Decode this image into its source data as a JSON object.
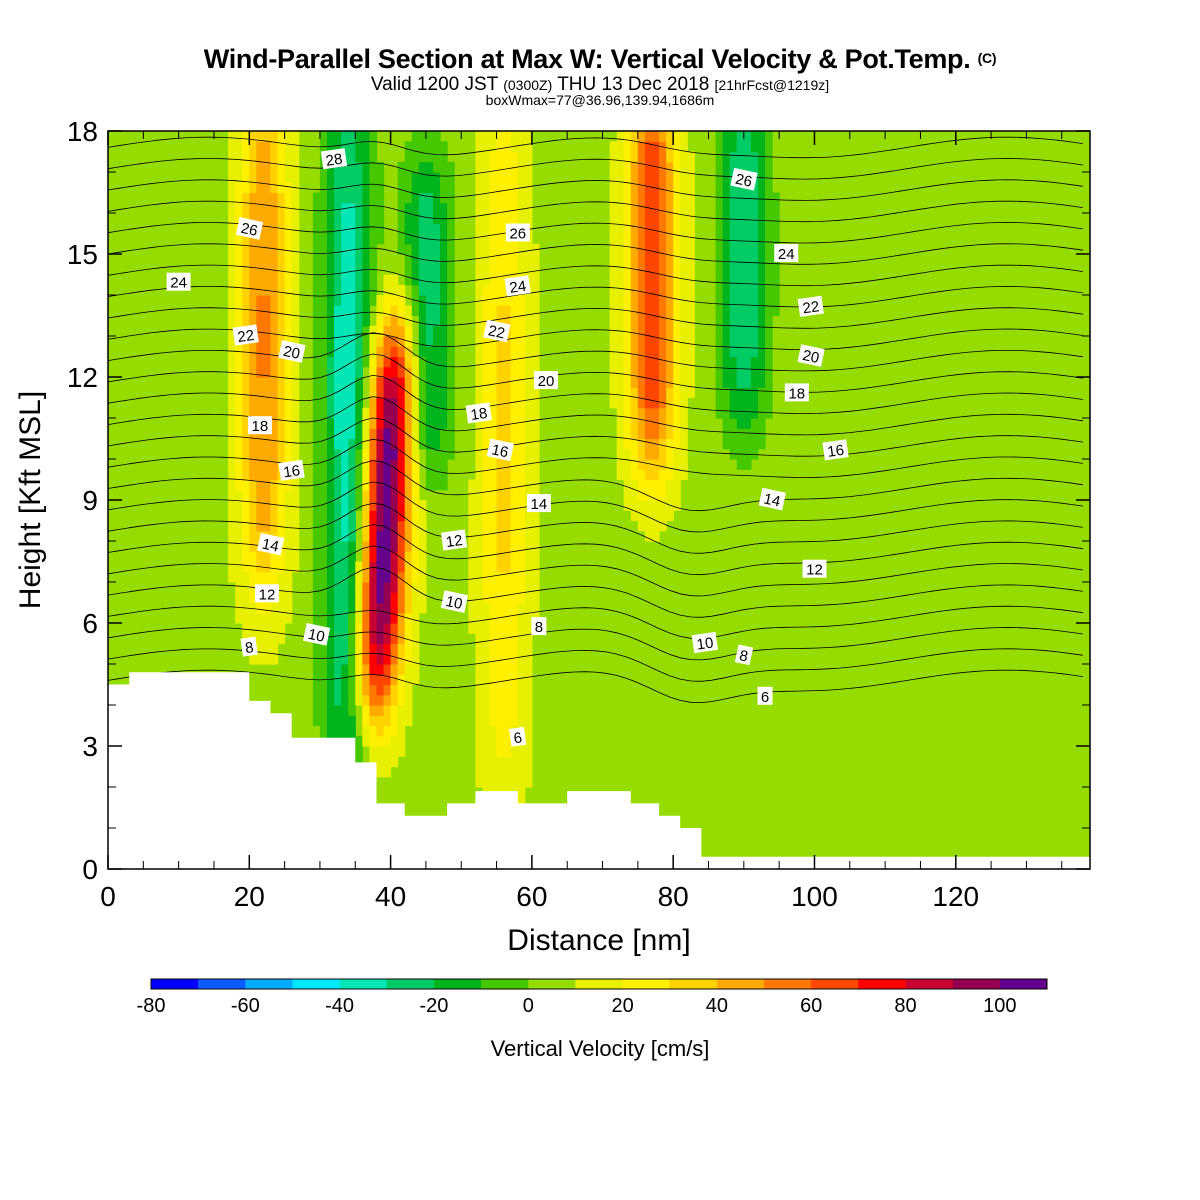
{
  "title": {
    "main": "Wind-Parallel Section at Max W: Vertical Velocity & Pot.Temp.",
    "main_mark": "(C)",
    "valid_prefix": "Valid 1200 JST",
    "valid_z": "(0300Z)",
    "valid_day": "THU 13 Dec 2018",
    "valid_fcst": "[21hrFcst@1219z]",
    "box": "boxWmax=77@36.96,139.94,1686m"
  },
  "chart_data": {
    "type": "heatmap",
    "xlabel": "Distance [nm]",
    "ylabel": "Height [Kft MSL]",
    "xlim": [
      0,
      139
    ],
    "ylim": [
      0,
      18
    ],
    "xticks": [
      0,
      20,
      40,
      60,
      80,
      100,
      120
    ],
    "yticks": [
      0,
      3,
      6,
      9,
      12,
      15,
      18
    ],
    "colorbar": {
      "title": "Vertical Velocity [cm/s]",
      "levels": [
        -80,
        -70,
        -60,
        -50,
        -40,
        -30,
        -20,
        -10,
        0,
        10,
        20,
        30,
        40,
        50,
        60,
        70,
        80,
        90,
        100,
        110
      ],
      "tick_labels": [
        "-80",
        "-60",
        "-40",
        "-20",
        "0",
        "20",
        "40",
        "60",
        "80",
        "100"
      ],
      "colors": [
        "#0000ff",
        "#0a5cff",
        "#00aaff",
        "#00e6ff",
        "#00e6b4",
        "#00cc66",
        "#00b41e",
        "#46c800",
        "#96dc00",
        "#e6f000",
        "#fff000",
        "#ffd200",
        "#ffaa00",
        "#ff7800",
        "#ff4600",
        "#ff0000",
        "#c80032",
        "#960050",
        "#64008c"
      ]
    },
    "updraft_max_cm_s": 77,
    "features": [
      {
        "x": 39,
        "z_range": [
          5,
          12
        ],
        "w": 105
      },
      {
        "x": 34,
        "z_range": [
          2,
          18
        ],
        "w": -45
      },
      {
        "x": 77,
        "z_range": [
          11,
          18
        ],
        "w": 65
      },
      {
        "x": 22,
        "z_range": [
          8,
          18
        ],
        "w": 45
      },
      {
        "x": 45,
        "z_range": [
          11,
          16
        ],
        "w": -35
      },
      {
        "x": 90,
        "z_range": [
          12,
          18
        ],
        "w": -35
      },
      {
        "x": 56,
        "z_range": [
          3,
          18
        ],
        "w": 25
      }
    ],
    "theta_contour_labels": [
      {
        "v": "28",
        "x": 32,
        "z": 17.3
      },
      {
        "v": "26",
        "x": 20,
        "z": 15.6
      },
      {
        "v": "24",
        "x": 10,
        "z": 14.3
      },
      {
        "v": "22",
        "x": 19.5,
        "z": 13.0
      },
      {
        "v": "20",
        "x": 26,
        "z": 12.6
      },
      {
        "v": "18",
        "x": 21.5,
        "z": 10.8
      },
      {
        "v": "16",
        "x": 26,
        "z": 9.7
      },
      {
        "v": "14",
        "x": 23,
        "z": 7.9
      },
      {
        "v": "12",
        "x": 22.5,
        "z": 6.7
      },
      {
        "v": "8",
        "x": 20,
        "z": 5.4
      },
      {
        "v": "10",
        "x": 29.5,
        "z": 5.7
      },
      {
        "v": "26",
        "x": 58,
        "z": 15.5
      },
      {
        "v": "24",
        "x": 58,
        "z": 14.2
      },
      {
        "v": "22",
        "x": 55,
        "z": 13.1
      },
      {
        "v": "20",
        "x": 62,
        "z": 11.9
      },
      {
        "v": "18",
        "x": 52.5,
        "z": 11.1
      },
      {
        "v": "16",
        "x": 55.5,
        "z": 10.2
      },
      {
        "v": "14",
        "x": 61,
        "z": 8.9
      },
      {
        "v": "12",
        "x": 49,
        "z": 8.0
      },
      {
        "v": "10",
        "x": 49,
        "z": 6.5
      },
      {
        "v": "8",
        "x": 61,
        "z": 5.9
      },
      {
        "v": "6",
        "x": 58,
        "z": 3.2
      },
      {
        "v": "26",
        "x": 90,
        "z": 16.8
      },
      {
        "v": "24",
        "x": 96,
        "z": 15.0
      },
      {
        "v": "22",
        "x": 99.5,
        "z": 13.7
      },
      {
        "v": "20",
        "x": 99.5,
        "z": 12.5
      },
      {
        "v": "18",
        "x": 97.5,
        "z": 11.6
      },
      {
        "v": "16",
        "x": 103,
        "z": 10.2
      },
      {
        "v": "14",
        "x": 94,
        "z": 9.0
      },
      {
        "v": "12",
        "x": 100,
        "z": 7.3
      },
      {
        "v": "10",
        "x": 84.5,
        "z": 5.5
      },
      {
        "v": "8",
        "x": 90,
        "z": 5.2
      },
      {
        "v": "6",
        "x": 93,
        "z": 4.2
      }
    ],
    "terrain_kft": [
      [
        0,
        4.5
      ],
      [
        3,
        4.5
      ],
      [
        3,
        4.8
      ],
      [
        20,
        4.8
      ],
      [
        20,
        4.1
      ],
      [
        23,
        4.1
      ],
      [
        23,
        3.8
      ],
      [
        26,
        3.8
      ],
      [
        26,
        3.2
      ],
      [
        35,
        3.2
      ],
      [
        35,
        2.6
      ],
      [
        38,
        2.6
      ],
      [
        38,
        1.6
      ],
      [
        42,
        1.6
      ],
      [
        42,
        1.3
      ],
      [
        48,
        1.3
      ],
      [
        48,
        1.6
      ],
      [
        52,
        1.6
      ],
      [
        52,
        1.9
      ],
      [
        58,
        1.9
      ],
      [
        58,
        1.6
      ],
      [
        65,
        1.6
      ],
      [
        65,
        1.9
      ],
      [
        74,
        1.9
      ],
      [
        74,
        1.6
      ],
      [
        78,
        1.6
      ],
      [
        78,
        1.3
      ],
      [
        81,
        1.3
      ],
      [
        81,
        1.0
      ],
      [
        84,
        1.0
      ],
      [
        84,
        0.3
      ],
      [
        139,
        0.3
      ]
    ]
  }
}
